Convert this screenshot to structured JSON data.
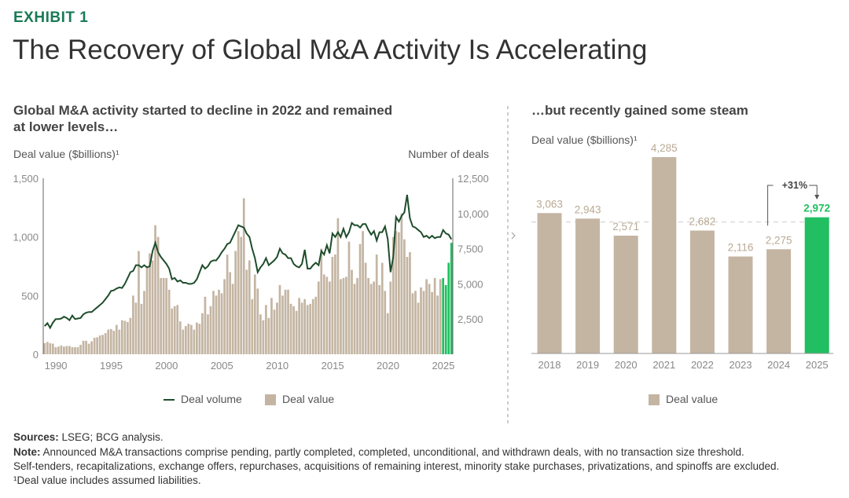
{
  "header": {
    "exhibit": "EXHIBIT 1",
    "title": "The Recovery of Global M&A Activity Is Accelerating"
  },
  "colors": {
    "bar": "#c4b5a3",
    "highlight": "#21bf61",
    "line": "#1e4d2b",
    "brand": "#197a56"
  },
  "chart_data": [
    {
      "type": "bar+line",
      "title": "Global M&A activity started to decline in 2022 and remained at lower levels…",
      "ylabel_left": "Deal value ($billions)¹",
      "ylabel_right": "Number of deals",
      "ylim_left": [
        0,
        1500
      ],
      "ylim_right": [
        0,
        12500
      ],
      "yticks_left": [
        "0",
        "500",
        "1,000",
        "1,500"
      ],
      "yticks_left_values": [
        0,
        500,
        1000,
        1500
      ],
      "yticks_right": [
        "2,500",
        "5,000",
        "7,500",
        "10,000",
        "12,500"
      ],
      "yticks_right_values": [
        2500,
        5000,
        7500,
        10000,
        12500
      ],
      "xticks": [
        "1990",
        "1995",
        "2000",
        "2005",
        "2010",
        "2015",
        "2020",
        "2025"
      ],
      "xticks_values": [
        1990,
        1995,
        2000,
        2005,
        2010,
        2015,
        2020,
        2025
      ],
      "x_start": 1989,
      "periods_per_year": 4,
      "legend": [
        "Deal volume",
        "Deal value"
      ],
      "legend_position": "bottom",
      "deal_value": [
        95,
        105,
        95,
        90,
        60,
        65,
        75,
        65,
        70,
        70,
        60,
        60,
        60,
        80,
        115,
        115,
        90,
        110,
        140,
        145,
        160,
        165,
        180,
        210,
        215,
        200,
        250,
        210,
        290,
        285,
        275,
        310,
        500,
        440,
        880,
        430,
        540,
        740,
        860,
        800,
        1100,
        1000,
        650,
        650,
        650,
        550,
        390,
        410,
        420,
        280,
        210,
        240,
        260,
        250,
        210,
        270,
        260,
        350,
        490,
        340,
        410,
        540,
        500,
        550,
        520,
        640,
        850,
        700,
        600,
        880,
        1050,
        1000,
        1330,
        720,
        800,
        470,
        680,
        560,
        340,
        290,
        420,
        310,
        480,
        380,
        440,
        590,
        500,
        550,
        550,
        430,
        410,
        370,
        480,
        440,
        470,
        420,
        430,
        470,
        490,
        620,
        900,
        680,
        660,
        620,
        830,
        850,
        1160,
        640,
        650,
        660,
        960,
        720,
        600,
        650,
        940,
        1050,
        780,
        650,
        600,
        620,
        850,
        590,
        780,
        540,
        350,
        620,
        1000,
        1050,
        1040,
        1200,
        980,
        830,
        870,
        520,
        540,
        440,
        570,
        540,
        640,
        600,
        530,
        650,
        500,
        640,
        650,
        590,
        780,
        950
      ],
      "highlight_last": 4,
      "deal_volume": [
        2000,
        2210,
        1875,
        2250,
        2500,
        2500,
        2540,
        2670,
        2580,
        2420,
        2750,
        2500,
        2540,
        2580,
        2830,
        2960,
        3000,
        3000,
        3170,
        3330,
        3500,
        3670,
        3920,
        4170,
        4500,
        4540,
        4670,
        4750,
        4710,
        5000,
        5420,
        5830,
        5920,
        6330,
        6330,
        6170,
        6330,
        6170,
        6250,
        7330,
        7920,
        7250,
        6920,
        6670,
        6420,
        6080,
        5330,
        5420,
        5170,
        5250,
        5080,
        5080,
        5000,
        5000,
        5080,
        5330,
        5830,
        6330,
        6080,
        6250,
        6580,
        6670,
        6670,
        6920,
        7250,
        7500,
        7830,
        7920,
        8330,
        8750,
        9170,
        9080,
        9000,
        8580,
        8330,
        7500,
        6830,
        5830,
        6170,
        6420,
        6830,
        6330,
        6500,
        6670,
        6920,
        7500,
        7170,
        7080,
        6830,
        6830,
        6420,
        6250,
        6170,
        6420,
        7420,
        6080,
        6080,
        6330,
        6500,
        6330,
        7330,
        7080,
        7750,
        7170,
        8580,
        8330,
        8670,
        8330,
        8920,
        8330,
        8670,
        9330,
        9170,
        9170,
        9000,
        9250,
        9250,
        8830,
        8500,
        8750,
        8080,
        8670,
        8670,
        9080,
        8170,
        5830,
        6920,
        9750,
        9420,
        9830,
        10080,
        11330,
        9670,
        9080,
        9000,
        8830,
        8670,
        8330,
        8420,
        8250,
        8420,
        8250,
        8330,
        8330,
        8830,
        8580,
        8500,
        8170
      ]
    },
    {
      "type": "bar",
      "title": "…but recently gained some steam",
      "ylabel": "Deal value ($billions)¹",
      "categories": [
        "2018",
        "2019",
        "2020",
        "2021",
        "2022",
        "2023",
        "2024",
        "2025"
      ],
      "values": [
        3063,
        2943,
        2571,
        4285,
        2682,
        2116,
        2275,
        2972
      ],
      "labels": [
        "3,063",
        "2,943",
        "2,571",
        "4,285",
        "2,682",
        "2,116",
        "2,275",
        "2,972"
      ],
      "highlight_index": 7,
      "annotation": "+31%",
      "reference_line_value": 2972,
      "legend": [
        "Deal value"
      ],
      "legend_position": "bottom"
    }
  ],
  "footer": {
    "sources_label": "Sources:",
    "sources": " LSEG; BCG analysis.",
    "note_label": "Note:",
    "note": " Announced M&A transactions comprise pending, partly completed, completed, unconditional, and withdrawn deals, with no transaction size threshold.",
    "note2": "Self-tenders, recapitalizations, exchange offers, repurchases, acquisitions of remaining interest, minority stake purchases, privatizations, and spinoffs are excluded.",
    "footnote": "¹Deal value includes assumed liabilities."
  }
}
